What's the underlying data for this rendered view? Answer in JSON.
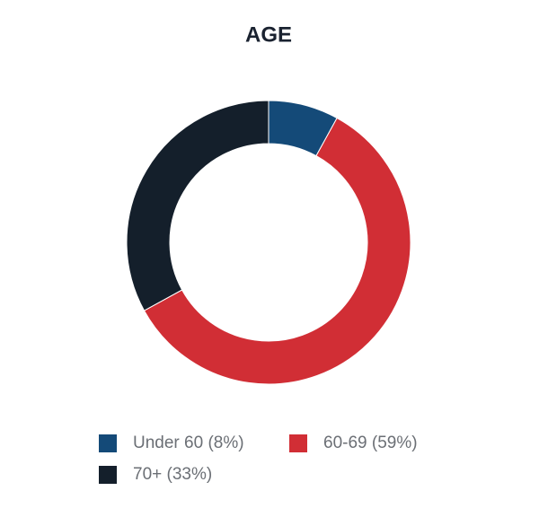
{
  "chart_data": {
    "type": "pie",
    "title": "AGE",
    "categories": [
      "Under 60 (8%)",
      "60-69 (59%)",
      "70+ (33%)"
    ],
    "values": [
      8,
      59,
      33
    ],
    "colors": [
      "#144a78",
      "#d12e35",
      "#141f2b"
    ],
    "donut": true
  }
}
